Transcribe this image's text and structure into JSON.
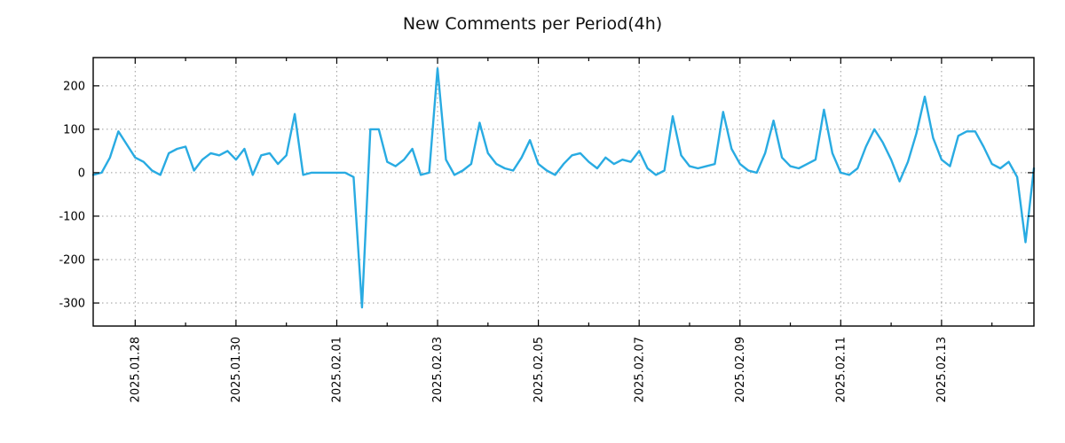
{
  "chart_data": {
    "type": "line",
    "title": "New Comments per Period(4h)",
    "line_color": "#29abe2",
    "grid": true,
    "legend": "none",
    "background": "#ffffff",
    "ylim": [
      -353,
      265
    ],
    "y_ticks": [
      200,
      100,
      0,
      -100,
      -200,
      -300
    ],
    "x_ticks": [
      {
        "label": "2025.01.28",
        "index": 5
      },
      {
        "label": "2025.01.30",
        "index": 17
      },
      {
        "label": "2025.02.01",
        "index": 29
      },
      {
        "label": "2025.02.03",
        "index": 41
      },
      {
        "label": "2025.02.05",
        "index": 53
      },
      {
        "label": "2025.02.07",
        "index": 65
      },
      {
        "label": "2025.02.09",
        "index": 77
      },
      {
        "label": "2025.02.11",
        "index": 89
      },
      {
        "label": "2025.02.13",
        "index": 101
      }
    ],
    "x_minor_tick_indices": [
      11,
      23,
      35,
      47,
      59,
      71,
      83,
      95,
      107
    ],
    "values": [
      -5,
      0,
      35,
      95,
      65,
      35,
      25,
      5,
      -5,
      45,
      55,
      60,
      5,
      30,
      45,
      40,
      50,
      30,
      55,
      -5,
      40,
      45,
      20,
      40,
      135,
      -5,
      0,
      0,
      0,
      0,
      0,
      -10,
      -310,
      100,
      100,
      25,
      15,
      30,
      55,
      -5,
      0,
      240,
      30,
      -5,
      5,
      20,
      115,
      45,
      20,
      10,
      5,
      35,
      75,
      20,
      5,
      -5,
      20,
      40,
      45,
      25,
      10,
      35,
      20,
      30,
      25,
      50,
      10,
      -5,
      5,
      130,
      40,
      15,
      10,
      15,
      20,
      140,
      55,
      20,
      5,
      0,
      45,
      120,
      35,
      15,
      10,
      20,
      30,
      145,
      45,
      0,
      -5,
      10,
      60,
      100,
      70,
      30,
      -20,
      25,
      90,
      175,
      80,
      30,
      15,
      85,
      95,
      95,
      60,
      20,
      10,
      25,
      -10,
      -160,
      10
    ]
  }
}
